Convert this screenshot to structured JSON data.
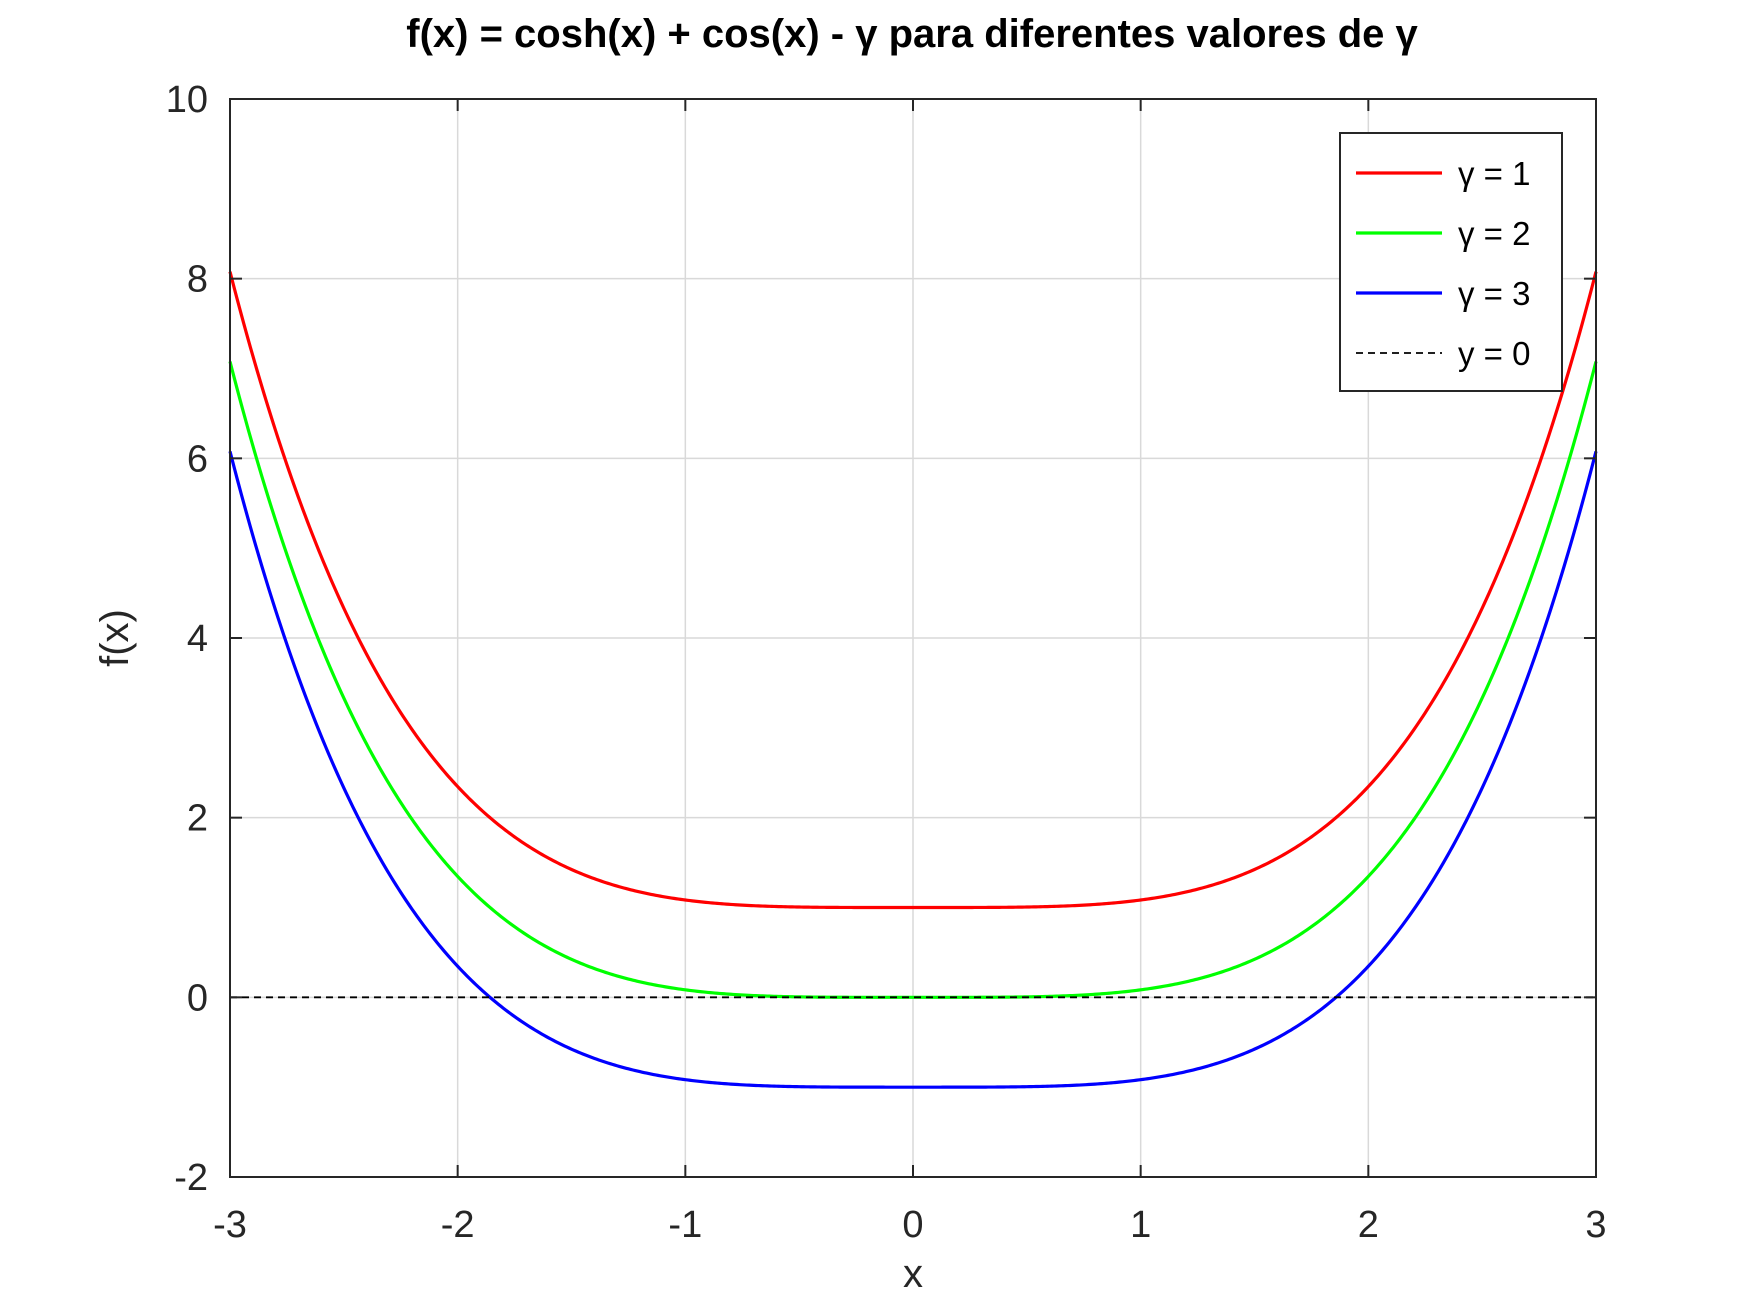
{
  "chart_data": {
    "type": "line",
    "title": "f(x) = cosh(x) + cos(x) - γ para diferentes valores de γ",
    "xlabel": "x",
    "ylabel": "f(x)",
    "xlim": [
      -3,
      3
    ],
    "ylim": [
      -2,
      10
    ],
    "xticks": [
      -3,
      -2,
      -1,
      0,
      1,
      2,
      3
    ],
    "yticks": [
      -2,
      0,
      2,
      4,
      6,
      8,
      10
    ],
    "grid": true,
    "legend_position": "top-right",
    "function": "cosh(x) + cos(x) - γ",
    "x": [
      -3,
      -2.5,
      -2,
      -1.5,
      -1,
      -0.5,
      0,
      0.5,
      1,
      1.5,
      2,
      2.5,
      3
    ],
    "series": [
      {
        "name": "γ = 1",
        "gamma": 1,
        "color": "#ff0000",
        "style": "solid",
        "values": [
          8.078,
          5.331,
          2.346,
          1.423,
          1.083,
          1.005,
          1.0,
          1.005,
          1.083,
          1.423,
          2.346,
          5.331,
          8.078
        ]
      },
      {
        "name": "γ = 2",
        "gamma": 2,
        "color": "#00ff00",
        "style": "solid",
        "values": [
          7.078,
          4.331,
          1.346,
          0.423,
          0.083,
          0.005,
          0.0,
          0.005,
          0.083,
          0.423,
          1.346,
          4.331,
          7.078
        ]
      },
      {
        "name": "γ = 3",
        "gamma": 3,
        "color": "#0000ff",
        "style": "solid",
        "values": [
          6.078,
          3.331,
          0.346,
          -0.577,
          -0.917,
          -0.995,
          -1.0,
          -0.995,
          -0.917,
          -0.577,
          0.346,
          3.331,
          6.078
        ]
      },
      {
        "name": "y = 0",
        "color": "#000000",
        "style": "dashed",
        "values": [
          0,
          0,
          0,
          0,
          0,
          0,
          0,
          0,
          0,
          0,
          0,
          0,
          0
        ]
      }
    ]
  }
}
